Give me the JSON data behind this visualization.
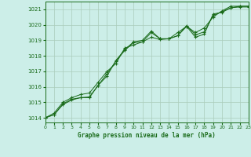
{
  "title": "Graphe pression niveau de la mer (hPa)",
  "bg_color": "#cceee8",
  "grid_color": "#aaccbb",
  "line_color": "#1a6b1a",
  "xlim": [
    0,
    23
  ],
  "ylim": [
    1013.7,
    1021.5
  ],
  "yticks": [
    1014,
    1015,
    1016,
    1017,
    1018,
    1019,
    1020,
    1021
  ],
  "xticks": [
    0,
    1,
    2,
    3,
    4,
    5,
    6,
    7,
    8,
    9,
    10,
    11,
    12,
    13,
    14,
    15,
    16,
    17,
    18,
    19,
    20,
    21,
    22,
    23
  ],
  "series": [
    [
      1014.0,
      1014.2,
      1014.9,
      1015.2,
      1015.3,
      1015.3,
      1016.1,
      1016.7,
      1017.7,
      1018.4,
      1018.9,
      1019.0,
      1019.6,
      1019.1,
      1019.1,
      1019.3,
      1019.9,
      1019.2,
      1019.4,
      1020.7,
      1020.8,
      1021.1,
      1021.2,
      1021.2
    ],
    [
      1014.0,
      1014.3,
      1015.0,
      1015.3,
      1015.5,
      1015.6,
      1016.3,
      1017.0,
      1017.5,
      1018.5,
      1018.7,
      1018.9,
      1019.5,
      1019.1,
      1019.1,
      1019.5,
      1019.9,
      1019.5,
      1019.8,
      1020.5,
      1020.9,
      1021.2,
      1021.2,
      1021.2
    ],
    [
      1014.0,
      1014.2,
      1014.85,
      1015.15,
      1015.3,
      1015.35,
      1016.1,
      1016.85,
      1017.65,
      1018.35,
      1018.85,
      1018.9,
      1019.2,
      1019.05,
      1019.1,
      1019.3,
      1019.95,
      1019.35,
      1019.55,
      1020.6,
      1020.85,
      1021.1,
      1021.15,
      1021.15
    ]
  ]
}
